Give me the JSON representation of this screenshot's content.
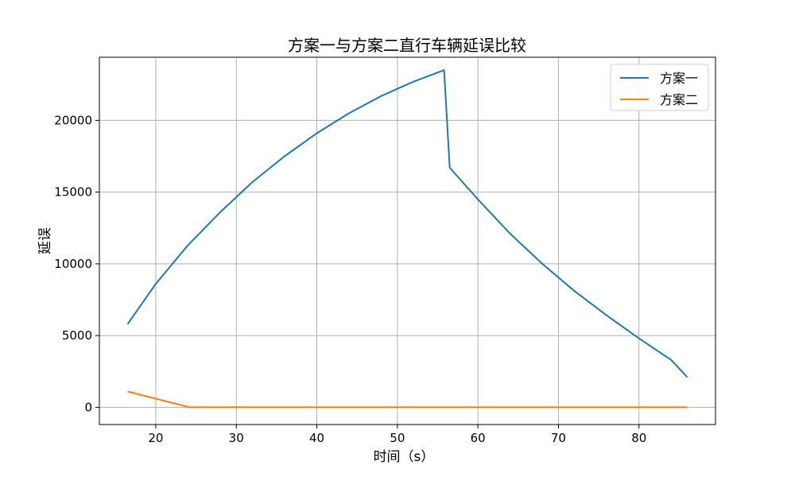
{
  "chart_data": {
    "type": "line",
    "title": "方案一与方案二直行车辆延误比较",
    "xlabel": "时间（s）",
    "ylabel": "延误",
    "xlim": [
      13,
      89.5
    ],
    "ylim": [
      -1200,
      24400
    ],
    "xticks": [
      20,
      30,
      40,
      50,
      60,
      70,
      80
    ],
    "yticks": [
      0,
      5000,
      10000,
      15000,
      20000
    ],
    "grid": true,
    "legend": "top-right",
    "series": [
      {
        "name": "方案一",
        "color": "#1f77b4",
        "x": [
          16.5,
          20,
          24,
          28,
          32,
          36,
          40,
          44,
          48,
          52,
          55.8,
          56.5,
          60,
          64,
          68,
          72,
          76,
          80,
          84,
          86
        ],
        "y": [
          5800,
          8600,
          11300,
          13600,
          15700,
          17500,
          19100,
          20500,
          21700,
          22700,
          23500,
          16700,
          14500,
          12100,
          10000,
          8100,
          6400,
          4800,
          3300,
          2100
        ]
      },
      {
        "name": "方案二",
        "color": "#ff7f0e",
        "x": [
          16.5,
          24.2,
          86
        ],
        "y": [
          1100,
          0,
          0
        ]
      }
    ]
  }
}
